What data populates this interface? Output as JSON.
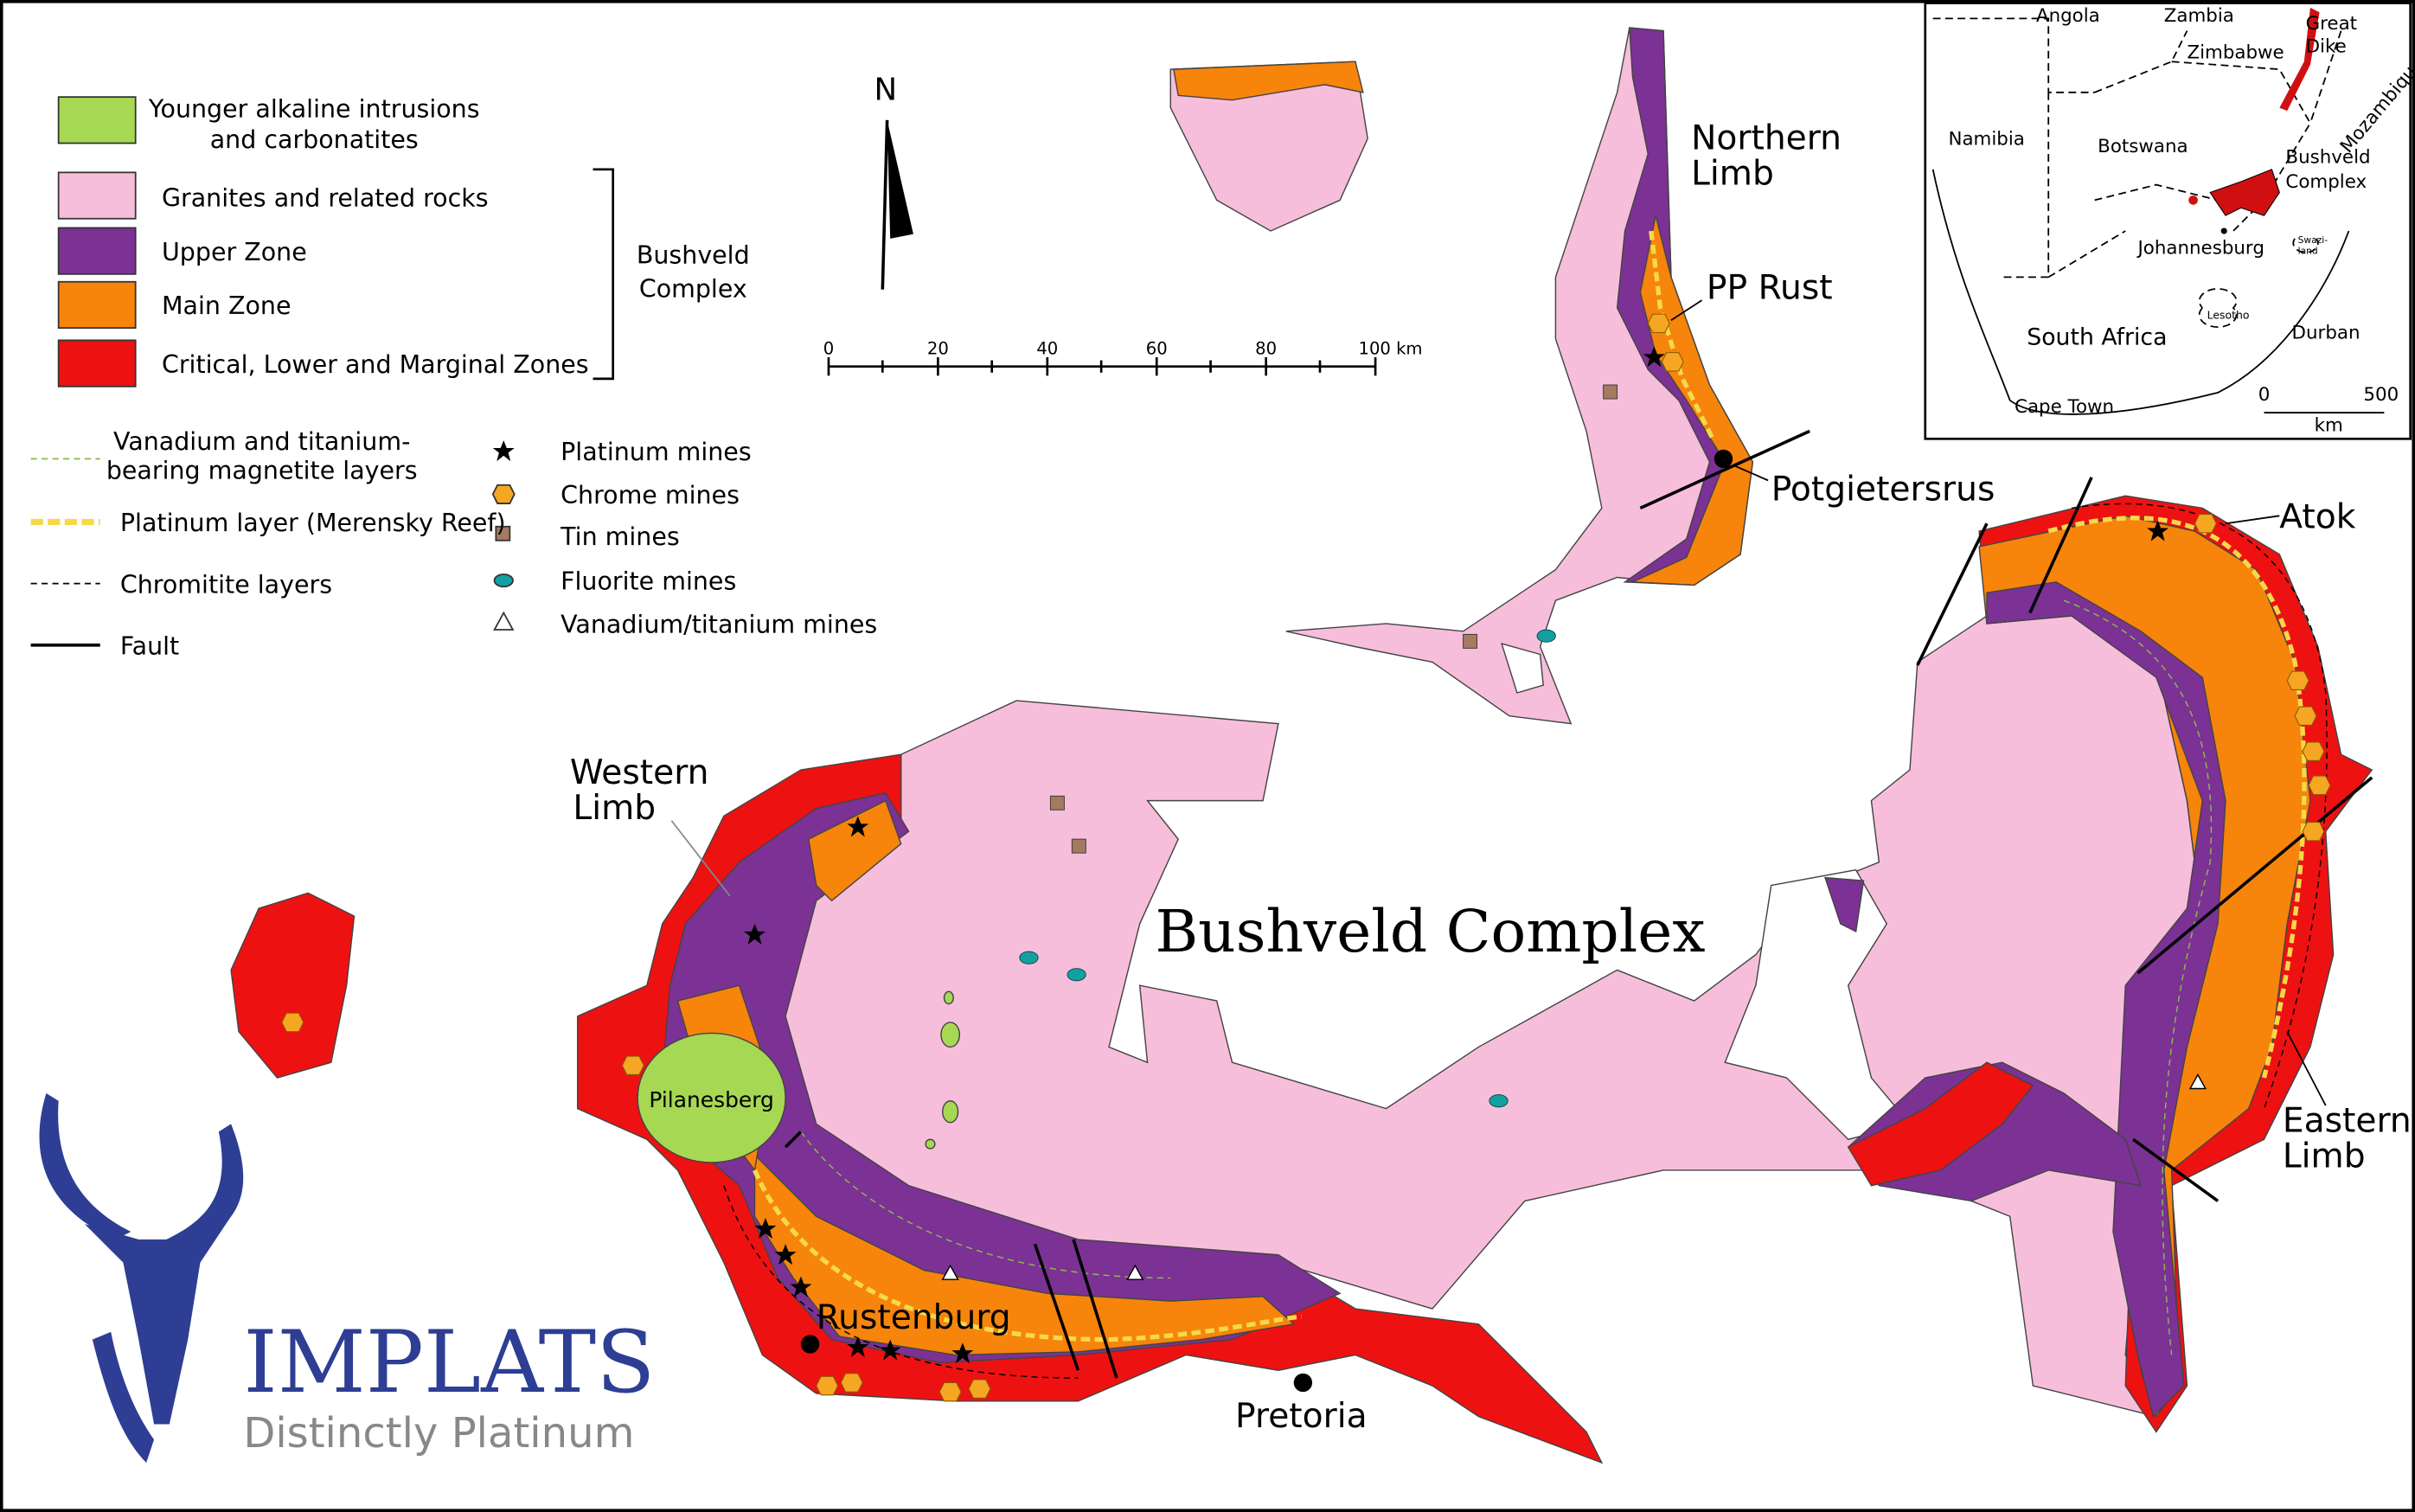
{
  "legend": {
    "units": [
      {
        "lines": [
          "Younger alkaline intrusions",
          "and carbonatites"
        ]
      },
      {
        "lines": [
          "Granites and related rocks"
        ]
      },
      {
        "lines": [
          "Upper Zone"
        ]
      },
      {
        "lines": [
          "Main Zone"
        ]
      },
      {
        "lines": [
          "Critical, Lower and Marginal Zones"
        ]
      }
    ],
    "bracket": [
      "Bushveld",
      "Complex"
    ],
    "line_items": [
      {
        "lines": [
          "Vanadium and titanium-",
          "bearing magnetite layers"
        ]
      },
      {
        "lines": [
          "Platinum layer (Merensky Reef)"
        ]
      },
      {
        "lines": [
          "Chromitite layers"
        ]
      },
      {
        "lines": [
          "Fault"
        ]
      }
    ],
    "symbols": [
      "Platinum mines",
      "Chrome mines",
      "Tin mines",
      "Fluorite mines",
      "Vanadium/titanium mines"
    ]
  },
  "north": "N",
  "scale_bar": [
    "0",
    "20",
    "40",
    "60",
    "80",
    "100 km"
  ],
  "labels": {
    "northern_limb": [
      "Northern",
      "Limb"
    ],
    "pp_rust": "PP Rust",
    "potgietersrus": "Potgietersrus",
    "atok": "Atok",
    "western_limb": [
      "Western",
      "Limb"
    ],
    "title": "Bushveld Complex",
    "pilanesberg": "Pilanesberg",
    "rustenburg": "Rustenburg",
    "pretoria": "Pretoria",
    "eastern_limb": [
      "Eastern",
      "Limb"
    ]
  },
  "inset": {
    "angola": "Angola",
    "zambia": "Zambia",
    "great_dike": [
      "Great",
      "Dike"
    ],
    "zimbabwe": "Zimbabwe",
    "mozambique": "Mozambique",
    "namibia": "Namibia",
    "botswana": "Botswana",
    "bushveld": [
      "Bushveld",
      "Complex"
    ],
    "johannesburg": "Johannesburg",
    "swaziland": [
      "Swazi-",
      "land"
    ],
    "south_africa": "South Africa",
    "lesotho": "Lesotho",
    "durban": "Durban",
    "cape_town": "Cape Town",
    "scale": [
      "0",
      "500",
      "km"
    ]
  },
  "logo": {
    "name": "IMPLATS",
    "tagline": "Distinctly Platinum"
  }
}
